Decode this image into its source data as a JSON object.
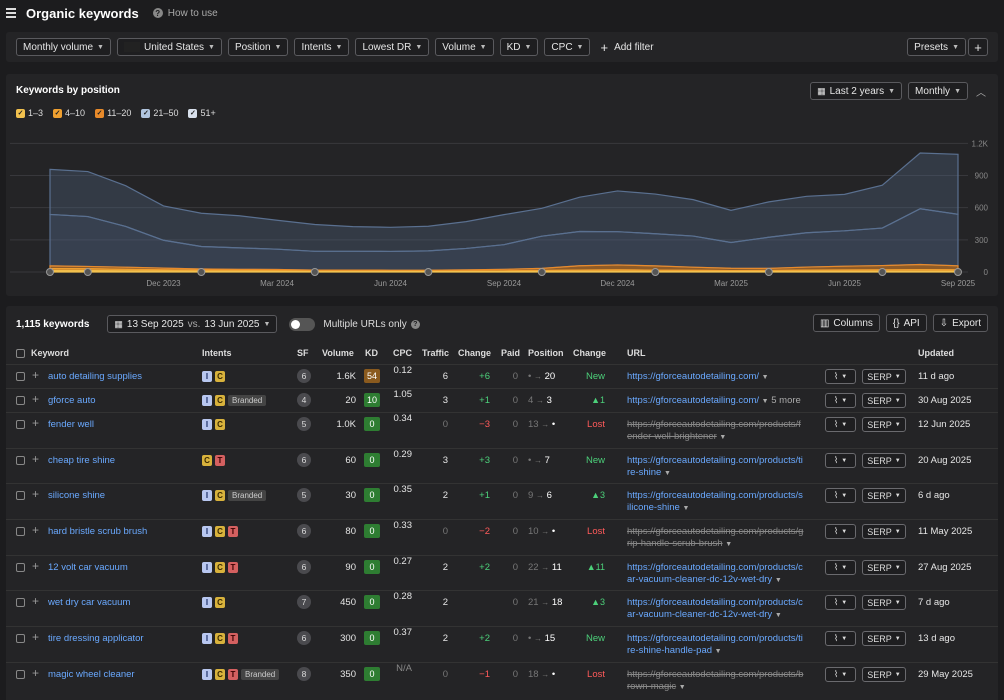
{
  "header": {
    "title": "Organic keywords",
    "how_to_use": "How to use"
  },
  "filters": {
    "monthly_volume": "Monthly volume",
    "country": "United States",
    "position": "Position",
    "intents": "Intents",
    "lowest_dr": "Lowest DR",
    "volume": "Volume",
    "kd": "KD",
    "cpc": "CPC",
    "add_filter": "Add filter",
    "presets": "Presets"
  },
  "chart_panel": {
    "title": "Keywords by position",
    "range": "Last 2 years",
    "interval": "Monthly",
    "legend": [
      {
        "label": "1–3",
        "color": "#f2c14e"
      },
      {
        "label": "4–10",
        "color": "#f0a030"
      },
      {
        "label": "11–20",
        "color": "#e88a2a"
      },
      {
        "label": "21–50",
        "color": "#b0c4de"
      },
      {
        "label": "51+",
        "color": "#d8e0ec"
      }
    ]
  },
  "chart_data": {
    "type": "area",
    "stacked": true,
    "x": [
      "Sep 2023",
      "Oct 2023",
      "Nov 2023",
      "Dec 2023",
      "Jan 2024",
      "Feb 2024",
      "Mar 2024",
      "Apr 2024",
      "May 2024",
      "Jun 2024",
      "Jul 2024",
      "Aug 2024",
      "Sep 2024",
      "Oct 2024",
      "Nov 2024",
      "Dec 2024",
      "Jan 2025",
      "Feb 2025",
      "Mar 2025",
      "Apr 2025",
      "May 2025",
      "Jun 2025",
      "Jul 2025",
      "Aug 2025",
      "Sep 2025"
    ],
    "x_tick_labels": [
      "Dec 2023",
      "Mar 2024",
      "Jun 2024",
      "Sep 2024",
      "Dec 2024",
      "Mar 2025",
      "Jun 2025",
      "Sep 2025"
    ],
    "y_ticks": [
      "0",
      "300",
      "600",
      "900",
      "1.2K"
    ],
    "ylim": [
      0,
      1250
    ],
    "series": [
      {
        "name": "1–3",
        "color": "#f2c14e",
        "values": [
          12,
          12,
          10,
          8,
          6,
          6,
          5,
          4,
          4,
          4,
          4,
          4,
          4,
          5,
          6,
          6,
          5,
          5,
          5,
          5,
          6,
          6,
          6,
          6,
          6
        ]
      },
      {
        "name": "4–10",
        "color": "#f0a030",
        "values": [
          20,
          18,
          15,
          12,
          10,
          9,
          8,
          6,
          6,
          5,
          5,
          6,
          7,
          9,
          12,
          14,
          12,
          10,
          8,
          9,
          12,
          13,
          14,
          16,
          14
        ]
      },
      {
        "name": "11–20",
        "color": "#e88a2a",
        "values": [
          25,
          22,
          20,
          16,
          12,
          10,
          10,
          8,
          8,
          8,
          8,
          10,
          14,
          20,
          40,
          46,
          40,
          30,
          22,
          20,
          28,
          35,
          40,
          48,
          38
        ]
      },
      {
        "name": "21–50",
        "color": "#b0c4de",
        "values": [
          480,
          465,
          380,
          260,
          210,
          200,
          190,
          175,
          175,
          175,
          180,
          200,
          230,
          300,
          320,
          310,
          300,
          290,
          240,
          290,
          320,
          330,
          350,
          520,
          480
        ]
      },
      {
        "name": "51+",
        "color": "#d8e0ec",
        "values": [
          420,
          420,
          380,
          320,
          310,
          300,
          270,
          250,
          230,
          225,
          230,
          250,
          280,
          260,
          320,
          380,
          370,
          340,
          300,
          330,
          340,
          340,
          400,
          520,
          560
        ]
      }
    ],
    "markers_on_x": true
  },
  "table": {
    "count": "1,115 keywords",
    "date_current": "13 Sep 2025",
    "vs": "vs.",
    "date_compare": "13 Jun 2025",
    "multiple_urls": "Multiple URLs only",
    "columns_btn": "Columns",
    "api_btn": "API",
    "export_btn": "Export",
    "headers": {
      "keyword": "Keyword",
      "intents": "Intents",
      "sf": "SF",
      "volume": "Volume",
      "kd": "KD",
      "cpc": "CPC",
      "traffic": "Traffic",
      "change": "Change",
      "paid": "Paid",
      "position": "Position",
      "pos_change": "Change",
      "url": "URL",
      "updated": "Updated"
    },
    "serp_label": "SERP",
    "rows": [
      {
        "keyword": "auto detailing supplies",
        "intents": [
          "I",
          "C"
        ],
        "branded": "",
        "sf": "6",
        "volume": "1.6K",
        "kd": "54",
        "kd_color": "#8a5a1e",
        "cpc": "0.12",
        "traffic": "6",
        "tchange": "+6",
        "tchange_color": "#4cd07a",
        "paid": "0",
        "pos_from": "•",
        "pos_to": "20",
        "pchange": "New",
        "pchange_color": "#4cd07a",
        "url1": "https://gforceautodetailing.com/",
        "url2": "",
        "url_extra": "",
        "strike": false,
        "updated": "11 d ago"
      },
      {
        "keyword": "gforce auto",
        "intents": [
          "I",
          "C"
        ],
        "branded": "Branded",
        "sf": "4",
        "volume": "20",
        "kd": "10",
        "kd_color": "#2e7d32",
        "cpc": "1.05",
        "traffic": "3",
        "tchange": "+1",
        "tchange_color": "#4cd07a",
        "paid": "0",
        "pos_from": "4",
        "pos_to": "3",
        "pchange": "▲1",
        "pchange_color": "#4cd07a",
        "url1": "https://gforceautodetailing.com/",
        "url2": "",
        "url_extra": "5 more",
        "strike": false,
        "updated": "30 Aug 2025"
      },
      {
        "keyword": "fender well",
        "intents": [
          "I",
          "C"
        ],
        "branded": "",
        "sf": "5",
        "volume": "1.0K",
        "kd": "0",
        "kd_color": "#2e7d32",
        "cpc": "0.34",
        "traffic": "0",
        "tchange": "−3",
        "tchange_color": "#ff5a5a",
        "paid": "0",
        "pos_from": "13",
        "pos_to": "•",
        "pchange": "Lost",
        "pchange_color": "#ff5a5a",
        "url1": "https://gforceautodetailing.com/products/f",
        "url2": "ender-well-brightener",
        "url_extra": "",
        "strike": true,
        "updated": "12 Jun 2025"
      },
      {
        "keyword": "cheap tire shine",
        "intents": [
          "C",
          "T"
        ],
        "branded": "",
        "sf": "6",
        "volume": "60",
        "kd": "0",
        "kd_color": "#2e7d32",
        "cpc": "0.29",
        "traffic": "3",
        "tchange": "+3",
        "tchange_color": "#4cd07a",
        "paid": "0",
        "pos_from": "•",
        "pos_to": "7",
        "pchange": "New",
        "pchange_color": "#4cd07a",
        "url1": "https://gforceautodetailing.com/products/ti",
        "url2": "re-shine",
        "url_extra": "",
        "strike": false,
        "updated": "20 Aug 2025"
      },
      {
        "keyword": "silicone shine",
        "intents": [
          "I",
          "C"
        ],
        "branded": "Branded",
        "sf": "5",
        "volume": "30",
        "kd": "0",
        "kd_color": "#2e7d32",
        "cpc": "0.35",
        "traffic": "2",
        "tchange": "+1",
        "tchange_color": "#4cd07a",
        "paid": "0",
        "pos_from": "9",
        "pos_to": "6",
        "pchange": "▲3",
        "pchange_color": "#4cd07a",
        "url1": "https://gforceautodetailing.com/products/s",
        "url2": "ilicone-shine",
        "url_extra": "",
        "strike": false,
        "updated": "6 d ago"
      },
      {
        "keyword": "hard bristle scrub brush",
        "intents": [
          "I",
          "C",
          "T"
        ],
        "branded": "",
        "sf": "6",
        "volume": "80",
        "kd": "0",
        "kd_color": "#2e7d32",
        "cpc": "0.33",
        "traffic": "0",
        "tchange": "−2",
        "tchange_color": "#ff5a5a",
        "paid": "0",
        "pos_from": "10",
        "pos_to": "•",
        "pchange": "Lost",
        "pchange_color": "#ff5a5a",
        "url1": "https://gforceautodetailing.com/products/g",
        "url2": "rip-handle-scrub-brush",
        "url_extra": "",
        "strike": true,
        "updated": "11 May 2025"
      },
      {
        "keyword": "12 volt car vacuum",
        "intents": [
          "I",
          "C",
          "T"
        ],
        "branded": "",
        "sf": "6",
        "volume": "90",
        "kd": "0",
        "kd_color": "#2e7d32",
        "cpc": "0.27",
        "traffic": "2",
        "tchange": "+2",
        "tchange_color": "#4cd07a",
        "paid": "0",
        "pos_from": "22",
        "pos_to": "11",
        "pchange": "▲11",
        "pchange_color": "#4cd07a",
        "url1": "https://gforceautodetailing.com/products/c",
        "url2": "ar-vacuum-cleaner-dc-12v-wet-dry",
        "url_extra": "",
        "strike": false,
        "updated": "27 Aug 2025"
      },
      {
        "keyword": "wet dry car vacuum",
        "intents": [
          "I",
          "C"
        ],
        "branded": "",
        "sf": "7",
        "volume": "450",
        "kd": "0",
        "kd_color": "#2e7d32",
        "cpc": "0.28",
        "traffic": "2",
        "tchange": "",
        "tchange_color": "#4cd07a",
        "paid": "0",
        "pos_from": "21",
        "pos_to": "18",
        "pchange": "▲3",
        "pchange_color": "#4cd07a",
        "url1": "https://gforceautodetailing.com/products/c",
        "url2": "ar-vacuum-cleaner-dc-12v-wet-dry",
        "url_extra": "",
        "strike": false,
        "updated": "7 d ago"
      },
      {
        "keyword": "tire dressing applicator",
        "intents": [
          "I",
          "C",
          "T"
        ],
        "branded": "",
        "sf": "6",
        "volume": "300",
        "kd": "0",
        "kd_color": "#2e7d32",
        "cpc": "0.37",
        "traffic": "2",
        "tchange": "+2",
        "tchange_color": "#4cd07a",
        "paid": "0",
        "pos_from": "•",
        "pos_to": "15",
        "pchange": "New",
        "pchange_color": "#4cd07a",
        "url1": "https://gforceautodetailing.com/products/ti",
        "url2": "re-shine-handle-pad",
        "url_extra": "",
        "strike": false,
        "updated": "13 d ago"
      },
      {
        "keyword": "magic wheel cleaner",
        "intents": [
          "I",
          "C",
          "T"
        ],
        "branded": "Branded",
        "sf": "8",
        "volume": "350",
        "kd": "0",
        "kd_color": "#2e7d32",
        "cpc": "N/A",
        "traffic": "0",
        "tchange": "−1",
        "tchange_color": "#ff5a5a",
        "paid": "0",
        "pos_from": "18",
        "pos_to": "•",
        "pchange": "Lost",
        "pchange_color": "#ff5a5a",
        "url1": "https://gforceautodetailing.com/products/b",
        "url2": "rown-magic",
        "url_extra": "",
        "strike": true,
        "updated": "29 May 2025"
      }
    ]
  }
}
